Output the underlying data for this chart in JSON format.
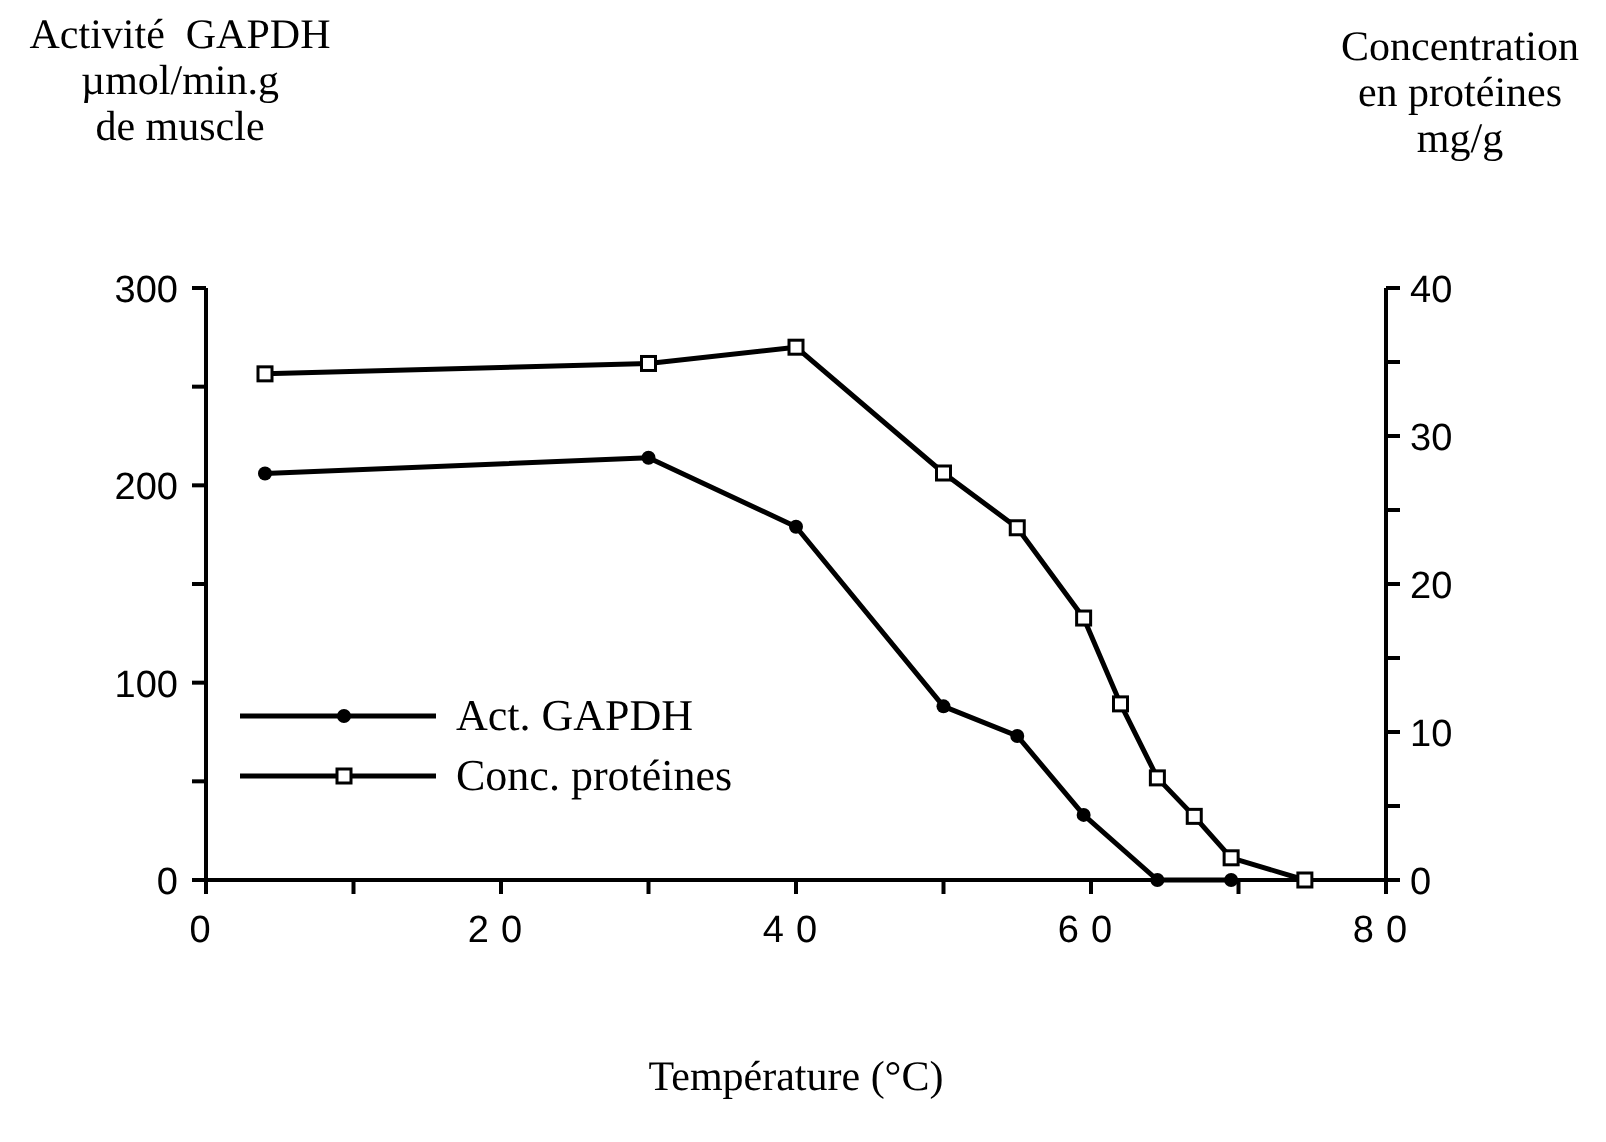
{
  "chart_data": {
    "type": "line",
    "xlabel": "Température (°C)",
    "ylabel": "Activité  GAPDH\nµmol/min.g\nde muscle",
    "y2label": "Concentration\nen protéines\nmg/g",
    "xlim": [
      0,
      80
    ],
    "xticks": [
      0,
      {
        "value": 10,
        "label": null
      },
      20,
      {
        "value": 30,
        "label": null
      },
      40,
      {
        "value": 50,
        "label": null
      },
      60,
      {
        "value": 70,
        "label": null
      },
      80
    ],
    "ylim": [
      0,
      300
    ],
    "yticks": [
      0,
      {
        "value": 50,
        "label": null
      },
      100,
      {
        "value": 150,
        "label": null
      },
      200,
      {
        "value": 250,
        "label": null
      },
      300
    ],
    "y2lim": [
      0,
      40
    ],
    "y2ticks": [
      0,
      {
        "value": 5,
        "label": null
      },
      10,
      {
        "value": 15,
        "label": null
      },
      20,
      {
        "value": 25,
        "label": null
      },
      30,
      {
        "value": 35,
        "label": null
      },
      40
    ],
    "grid": false,
    "legend": "bottom left",
    "line_style": "solid",
    "series": [
      {
        "name": "Act. GAPDH",
        "color": "#000000",
        "marker": "circle",
        "x": [
          4,
          30,
          40,
          50,
          55,
          59.5,
          64.5,
          69.5
        ],
        "values": [
          206,
          214,
          179,
          88,
          73,
          33,
          0,
          0
        ]
      },
      {
        "name": "Conc. protéines",
        "color": "#000000",
        "marker": "square",
        "axis": "y2",
        "x": [
          4,
          30,
          40,
          50,
          55,
          59.5,
          62,
          64.5,
          67,
          69.5,
          74.5
        ],
        "values": [
          34.2,
          34.9,
          36,
          27.5,
          23.8,
          17.7,
          11.9,
          6.9,
          4.3,
          1.5,
          0
        ]
      }
    ]
  }
}
